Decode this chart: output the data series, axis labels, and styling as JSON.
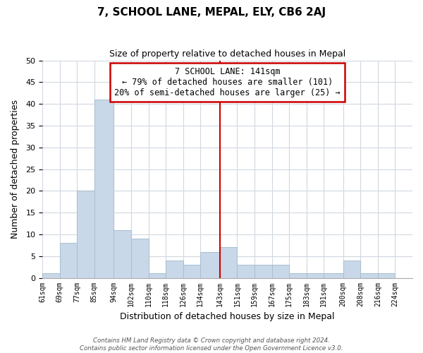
{
  "title": "7, SCHOOL LANE, MEPAL, ELY, CB6 2AJ",
  "subtitle": "Size of property relative to detached houses in Mepal",
  "xlabel": "Distribution of detached houses by size in Mepal",
  "ylabel": "Number of detached properties",
  "bar_color": "#c8d8e8",
  "bar_edge_color": "#a8bece",
  "bins": [
    "61sqm",
    "69sqm",
    "77sqm",
    "85sqm",
    "94sqm",
    "102sqm",
    "110sqm",
    "118sqm",
    "126sqm",
    "134sqm",
    "143sqm",
    "151sqm",
    "159sqm",
    "167sqm",
    "175sqm",
    "183sqm",
    "191sqm",
    "200sqm",
    "208sqm",
    "216sqm",
    "224sqm"
  ],
  "counts": [
    1,
    8,
    20,
    41,
    11,
    9,
    1,
    4,
    3,
    6,
    7,
    3,
    3,
    3,
    1,
    1,
    1,
    4,
    1,
    1
  ],
  "bin_edges_num": [
    61,
    69,
    77,
    85,
    94,
    102,
    110,
    118,
    126,
    134,
    143,
    151,
    159,
    167,
    175,
    183,
    191,
    200,
    208,
    216,
    224
  ],
  "property_line_x": 143,
  "property_line_label": "7 SCHOOL LANE: 141sqm",
  "annotation_line1": "← 79% of detached houses are smaller (101)",
  "annotation_line2": "20% of semi-detached houses are larger (25) →",
  "ylim": [
    0,
    50
  ],
  "yticks": [
    0,
    5,
    10,
    15,
    20,
    25,
    30,
    35,
    40,
    45,
    50
  ],
  "annotation_box_color": "#ffffff",
  "annotation_box_edge": "#cc0000",
  "property_line_color": "#cc0000",
  "grid_color": "#d0d8e0",
  "footer_line1": "Contains HM Land Registry data © Crown copyright and database right 2024.",
  "footer_line2": "Contains public sector information licensed under the Open Government Licence v3.0."
}
